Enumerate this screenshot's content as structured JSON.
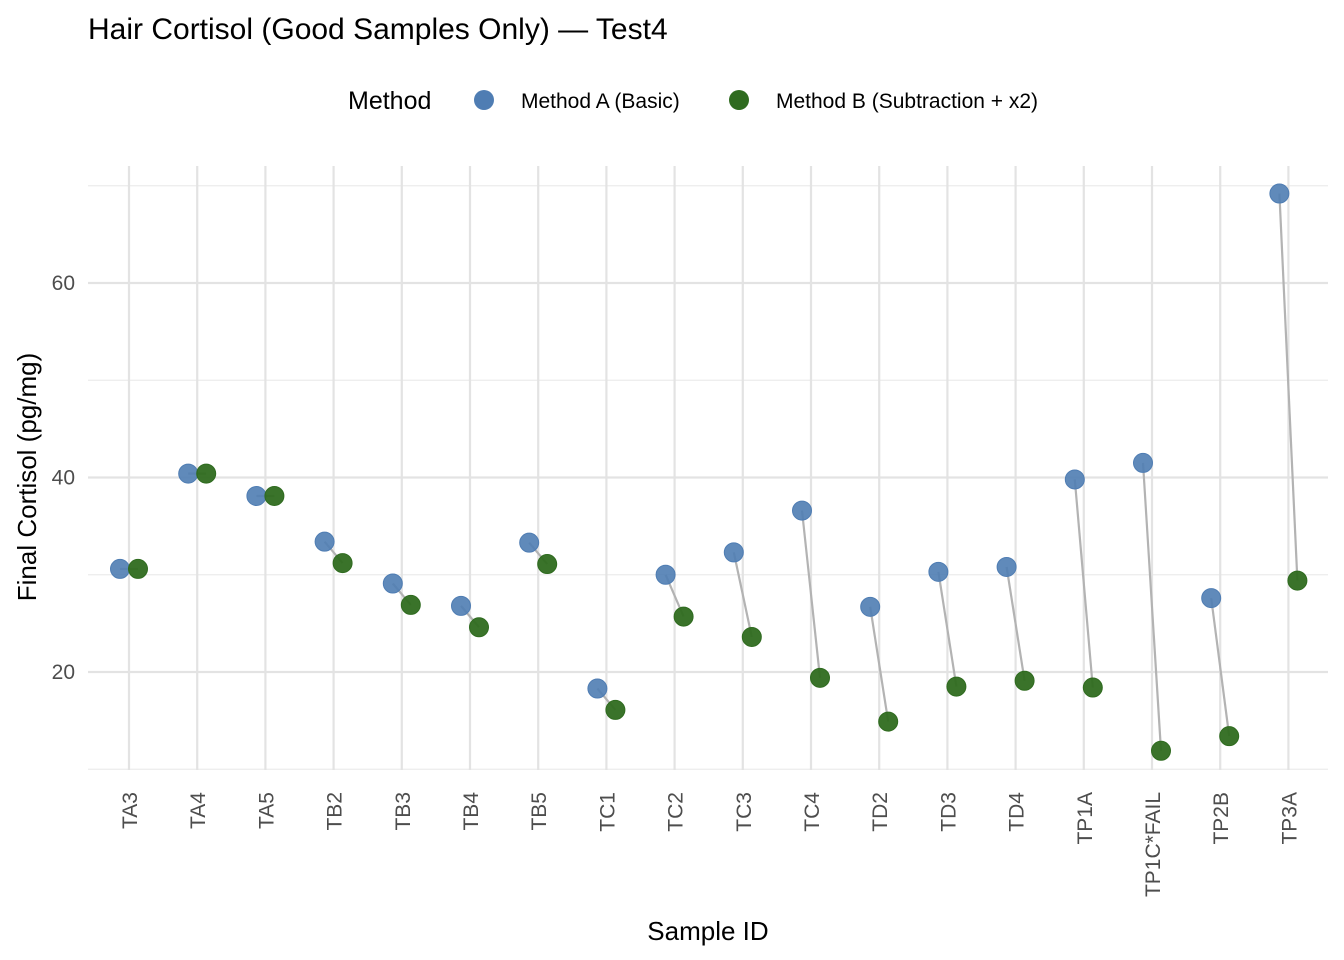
{
  "chart_data": {
    "type": "scatter",
    "title": "Hair Cortisol (Good Samples Only) — Test4",
    "xlabel": "Sample ID",
    "ylabel": "Final Cortisol (pg/mg)",
    "ylim": [
      10,
      70
    ],
    "yticks": [
      20,
      40,
      60
    ],
    "grid": true,
    "legend": {
      "title": "Method",
      "position": "top"
    },
    "categories": [
      "TA3",
      "TA4",
      "TA5",
      "TB2",
      "TB3",
      "TB4",
      "TB5",
      "TC1",
      "TC2",
      "TC3",
      "TC4",
      "TD2",
      "TD3",
      "TD4",
      "TP1A",
      "TP1C*FAIL",
      "TP2B",
      "TP3A"
    ],
    "series": [
      {
        "name": "Method A (Basic)",
        "color": "#4f7db3",
        "values": [
          30.6,
          40.4,
          38.1,
          33.4,
          29.1,
          26.8,
          33.3,
          18.3,
          30.0,
          32.3,
          36.6,
          26.7,
          30.3,
          30.8,
          39.8,
          41.5,
          27.6,
          69.2
        ]
      },
      {
        "name": "Method B (Subtraction + x2)",
        "color": "#2f6b1f",
        "values": [
          30.6,
          40.4,
          38.1,
          31.2,
          26.9,
          24.6,
          31.1,
          16.1,
          25.7,
          23.6,
          19.4,
          14.9,
          18.5,
          19.1,
          18.4,
          11.9,
          13.4,
          29.4
        ]
      }
    ],
    "connector_color": "#b3b3b3"
  }
}
